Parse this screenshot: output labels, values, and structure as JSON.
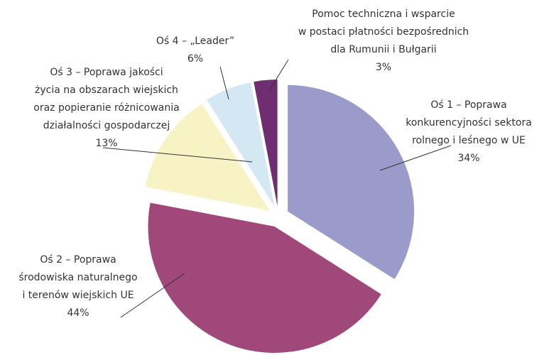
{
  "chart_data": {
    "type": "pie",
    "categories": [
      [
        "Oś 1 – Poprawa",
        "konkurencyjności sektora",
        "rolnego i leśnego w UE"
      ],
      [
        "Oś 2 – Poprawa",
        "środowiska naturalnego",
        "i terenów wiejskich UE"
      ],
      [
        "Oś 3 – Poprawa jakości",
        "życia na obszarach wiejskich",
        "oraz popieranie różnicowania",
        "działalności gospodarczej"
      ],
      [
        "Oś 4 – „Leader”"
      ],
      [
        "Pomoc techniczna i wsparcie",
        "w postaci płatności bezpośrednich",
        "dla Rumunii i Bułgarii"
      ]
    ],
    "values": [
      34,
      44,
      13,
      6,
      3
    ],
    "value_labels": [
      "34%",
      "44%",
      "13%",
      "6%",
      "3%"
    ],
    "colors": [
      "#9b9bcb",
      "#a0487a",
      "#f8f3c4",
      "#d3e8f2",
      "#6f2d72"
    ]
  }
}
